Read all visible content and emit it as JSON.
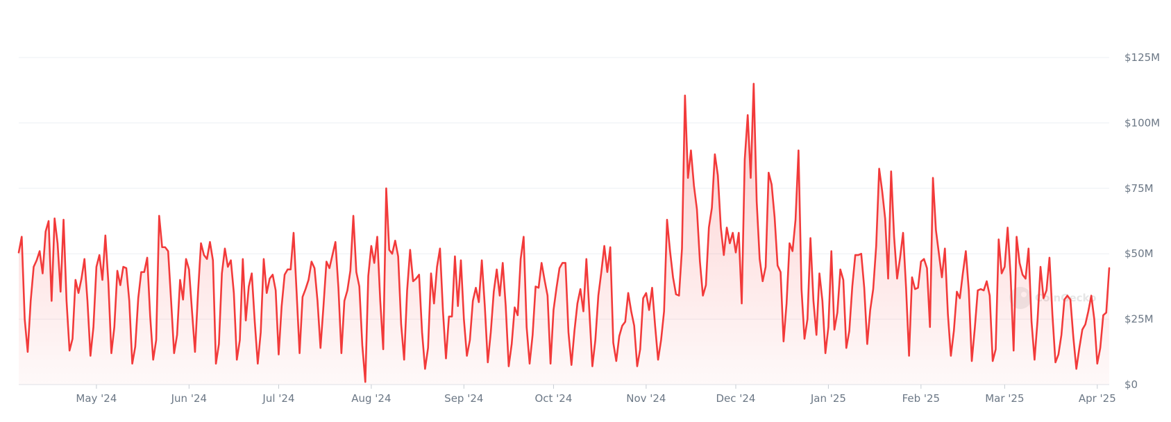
{
  "chart_data": {
    "type": "area",
    "title": "",
    "xlabel": "",
    "ylabel": "",
    "x_range": [
      "2024-04-05",
      "2025-04-05"
    ],
    "ylim": [
      0,
      125
    ],
    "y_unit": "million USD",
    "y_ticks": [
      {
        "value": 0,
        "label": "$0"
      },
      {
        "value": 25,
        "label": "$25M"
      },
      {
        "value": 50,
        "label": "$50M"
      },
      {
        "value": 75,
        "label": "$75M"
      },
      {
        "value": 100,
        "label": "$100M"
      },
      {
        "value": 125,
        "label": "$125M"
      }
    ],
    "x_ticks": [
      {
        "date": "2024-05-01",
        "label": "May '24"
      },
      {
        "date": "2024-06-01",
        "label": "Jun '24"
      },
      {
        "date": "2024-07-01",
        "label": "Jul '24"
      },
      {
        "date": "2024-08-01",
        "label": "Aug '24"
      },
      {
        "date": "2024-09-01",
        "label": "Sep '24"
      },
      {
        "date": "2024-10-01",
        "label": "Oct '24"
      },
      {
        "date": "2024-11-01",
        "label": "Nov '24"
      },
      {
        "date": "2024-12-01",
        "label": "Dec '24"
      },
      {
        "date": "2025-01-01",
        "label": "Jan '25"
      },
      {
        "date": "2025-02-01",
        "label": "Feb '25"
      },
      {
        "date": "2025-03-01",
        "label": "Mar '25"
      },
      {
        "date": "2025-04-01",
        "label": "Apr '25"
      }
    ],
    "grid": true,
    "legend": "none",
    "colors": {
      "line": "#f23a3a",
      "fill_top": "#f23a3a",
      "grid": "#eceff3",
      "axis_text": "#6b7785"
    },
    "watermark": "CoinGecko",
    "series": [
      {
        "start_date": "2024-04-05",
        "interval": "1 day",
        "values": [
          50.5,
          56.5,
          25,
          12.5,
          32,
          45,
          47.5,
          51,
          42.5,
          58.5,
          62.5,
          32,
          63.5,
          54,
          35.5,
          63,
          32,
          13,
          17.5,
          40,
          35,
          40.5,
          48,
          32,
          11,
          22,
          45,
          49.5,
          40,
          57,
          39,
          12,
          22,
          43.5,
          38,
          45,
          44.5,
          32,
          8,
          14.5,
          33,
          43,
          43,
          48.5,
          26,
          9.5,
          17,
          64.5,
          52.5,
          52.5,
          51,
          32,
          12,
          19,
          40,
          32.5,
          48,
          44,
          28,
          12.5,
          35,
          54,
          49.5,
          48,
          54.5,
          47.5,
          8,
          15.5,
          42.5,
          52,
          45,
          47.5,
          35,
          9.5,
          17,
          48,
          24.5,
          37.5,
          42.5,
          24,
          8,
          20,
          48,
          35,
          40.5,
          42,
          36,
          11.5,
          30,
          42,
          44,
          44,
          58,
          35.5,
          12,
          33.5,
          36.5,
          40,
          47,
          44.5,
          32,
          14,
          30,
          47,
          44.5,
          49.5,
          54.5,
          37,
          12,
          32,
          36,
          43.5,
          64.5,
          43,
          37.5,
          15,
          1,
          41.5,
          53,
          46.5,
          56.5,
          32,
          13.5,
          75,
          51.5,
          50,
          55,
          49,
          23,
          9.5,
          36,
          51.5,
          39.5,
          40.5,
          42,
          20,
          6,
          14,
          42.5,
          31,
          45,
          52,
          28,
          10,
          26,
          26,
          49,
          30,
          47.5,
          25,
          11,
          17,
          32,
          37,
          31.5,
          47.5,
          30,
          8.5,
          20,
          35.5,
          44,
          34,
          46.5,
          30,
          7,
          15.5,
          29.5,
          26.5,
          48,
          56.5,
          22,
          8,
          19,
          37.5,
          37,
          46.5,
          40,
          34,
          8,
          28.5,
          37,
          44.5,
          46.5,
          46.5,
          20,
          7.5,
          20.5,
          31,
          36.5,
          28,
          48,
          28,
          7,
          17,
          34,
          43,
          53,
          43,
          52.5,
          16,
          9,
          18.5,
          22.5,
          24,
          35,
          28,
          22.5,
          7,
          13.5,
          33,
          35,
          28.5,
          37,
          22.5,
          9.5,
          17,
          28,
          63,
          51,
          41,
          34.5,
          34,
          52,
          110.5,
          79,
          89.5,
          76,
          67,
          47,
          34,
          38,
          60,
          67.5,
          88,
          80,
          60,
          49.5,
          60,
          54,
          58,
          50.5,
          58,
          31,
          86,
          103,
          79,
          115,
          70,
          48,
          39.5,
          45,
          81,
          76.5,
          64,
          45.5,
          43,
          16.5,
          31,
          54,
          51,
          63,
          89.5,
          36.5,
          17.5,
          25,
          56,
          32,
          19,
          42.5,
          32,
          12,
          22,
          51,
          21,
          27.5,
          44,
          40,
          14,
          20.5,
          37.5,
          49.5,
          49.5,
          50,
          37,
          15.5,
          28.5,
          36.5,
          53,
          82.5,
          74,
          63.5,
          40.5,
          81.5,
          56.5,
          40.5,
          48.5,
          58,
          37,
          11,
          41,
          36.5,
          37,
          47,
          48,
          44.5,
          22,
          79,
          59,
          50,
          41,
          52,
          27,
          11,
          20.5,
          35.5,
          33,
          42.5,
          51,
          36,
          9,
          21.5,
          36,
          36.5,
          36,
          39.5,
          34,
          9,
          13.5,
          55.5,
          42.5,
          45,
          60,
          41.5,
          13,
          56.5,
          46.5,
          42,
          40.5,
          52,
          24,
          9.5,
          24.5,
          45,
          33,
          36,
          48.5,
          26.5,
          8.5,
          11.5,
          19,
          32.5,
          34,
          32.5,
          18,
          6,
          14,
          21,
          23,
          28,
          34,
          25,
          8,
          14,
          26.5,
          27.5,
          44.5
        ]
      }
    ]
  }
}
